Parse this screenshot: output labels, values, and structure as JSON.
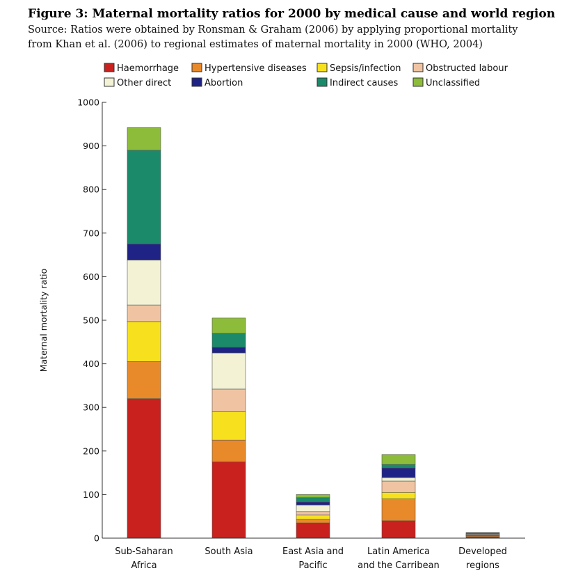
{
  "figure": {
    "title": "Figure 3: Maternal mortality ratios for 2000 by medical cause and world region",
    "source_line1": "Source: Ratios were obtained by Ronsman & Graham (2006) by applying proportional mortality",
    "source_line2": "from Khan et al. (2006) to regional estimates of maternal mortality in 2000 (WHO, 2004)"
  },
  "chart_data": {
    "type": "bar",
    "stacked": true,
    "ylabel": "Maternal mortality ratio",
    "ylim": [
      0,
      1000
    ],
    "yticks": [
      0,
      100,
      200,
      300,
      400,
      500,
      600,
      700,
      800,
      900,
      1000
    ],
    "legend_placement": "top",
    "categories": [
      [
        "Sub-Saharan",
        "Africa"
      ],
      [
        "South Asia"
      ],
      [
        "East Asia and",
        "Pacific"
      ],
      [
        "Latin America",
        "and the Carribean"
      ],
      [
        "Developed",
        "regions"
      ]
    ],
    "series": [
      {
        "name": "Haemorrhage",
        "color": "#c8211e",
        "values": [
          320,
          175,
          35,
          40,
          3
        ]
      },
      {
        "name": "Hypertensive diseases",
        "color": "#e8892a",
        "values": [
          85,
          50,
          8,
          50,
          2
        ]
      },
      {
        "name": "Sepsis/infection",
        "color": "#f7e11f",
        "values": [
          92,
          65,
          10,
          15,
          1
        ]
      },
      {
        "name": "Obstructed labour",
        "color": "#f0c4a2",
        "values": [
          38,
          52,
          8,
          26,
          1
        ]
      },
      {
        "name": "Other direct",
        "color": "#f3f2d4",
        "values": [
          103,
          83,
          15,
          8,
          2
        ]
      },
      {
        "name": "Abortion",
        "color": "#1f2385",
        "values": [
          37,
          13,
          7,
          22,
          1
        ]
      },
      {
        "name": "Indirect causes",
        "color": "#1a8a6a",
        "values": [
          215,
          32,
          10,
          8,
          2
        ]
      },
      {
        "name": "Unclassified",
        "color": "#8cbc3a",
        "values": [
          52,
          35,
          7,
          23,
          1
        ]
      }
    ],
    "legend_order": [
      "Haemorrhage",
      "Hypertensive diseases",
      "Sepsis/infection",
      "Obstructed labour",
      "Other direct",
      "Abortion",
      "Indirect causes",
      "Unclassified"
    ]
  }
}
